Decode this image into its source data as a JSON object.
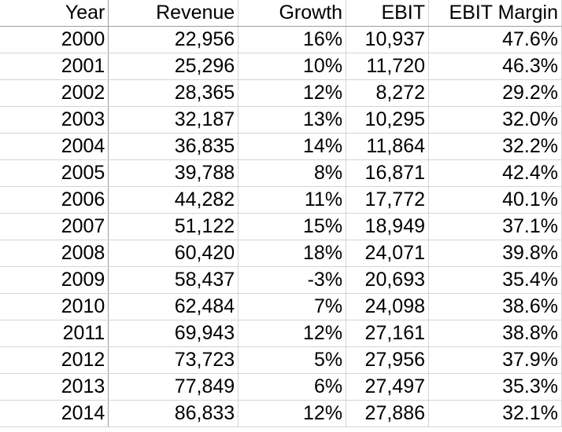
{
  "columns": {
    "year": "Year",
    "revenue": "Revenue",
    "growth": "Growth",
    "ebit": "EBIT",
    "ebit_margin": "EBIT Margin"
  },
  "rows": [
    {
      "year": "2000",
      "revenue": "22,956",
      "growth": "16%",
      "ebit": "10,937",
      "ebit_margin": "47.6%"
    },
    {
      "year": "2001",
      "revenue": "25,296",
      "growth": "10%",
      "ebit": "11,720",
      "ebit_margin": "46.3%"
    },
    {
      "year": "2002",
      "revenue": "28,365",
      "growth": "12%",
      "ebit": "8,272",
      "ebit_margin": "29.2%"
    },
    {
      "year": "2003",
      "revenue": "32,187",
      "growth": "13%",
      "ebit": "10,295",
      "ebit_margin": "32.0%"
    },
    {
      "year": "2004",
      "revenue": "36,835",
      "growth": "14%",
      "ebit": "11,864",
      "ebit_margin": "32.2%"
    },
    {
      "year": "2005",
      "revenue": "39,788",
      "growth": "8%",
      "ebit": "16,871",
      "ebit_margin": "42.4%"
    },
    {
      "year": "2006",
      "revenue": "44,282",
      "growth": "11%",
      "ebit": "17,772",
      "ebit_margin": "40.1%"
    },
    {
      "year": "2007",
      "revenue": "51,122",
      "growth": "15%",
      "ebit": "18,949",
      "ebit_margin": "37.1%"
    },
    {
      "year": "2008",
      "revenue": "60,420",
      "growth": "18%",
      "ebit": "24,071",
      "ebit_margin": "39.8%"
    },
    {
      "year": "2009",
      "revenue": "58,437",
      "growth": "-3%",
      "ebit": "20,693",
      "ebit_margin": "35.4%"
    },
    {
      "year": "2010",
      "revenue": "62,484",
      "growth": "7%",
      "ebit": "24,098",
      "ebit_margin": "38.6%"
    },
    {
      "year": "2011",
      "revenue": "69,943",
      "growth": "12%",
      "ebit": "27,161",
      "ebit_margin": "38.8%"
    },
    {
      "year": "2012",
      "revenue": "73,723",
      "growth": "5%",
      "ebit": "27,956",
      "ebit_margin": "37.9%"
    },
    {
      "year": "2013",
      "revenue": "77,849",
      "growth": "6%",
      "ebit": "27,497",
      "ebit_margin": "35.3%"
    },
    {
      "year": "2014",
      "revenue": "86,833",
      "growth": "12%",
      "ebit": "27,886",
      "ebit_margin": "32.1%"
    }
  ]
}
